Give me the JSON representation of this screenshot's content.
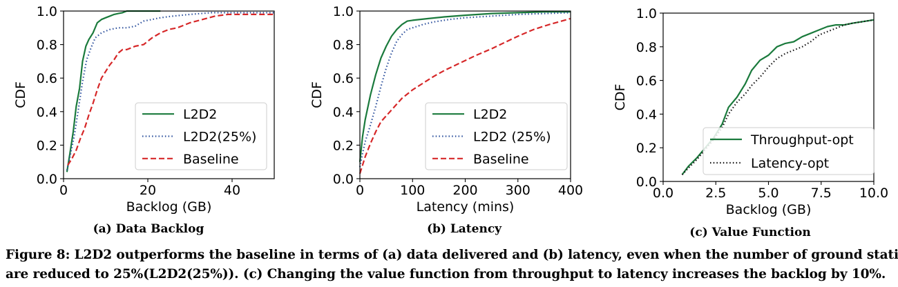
{
  "chart_data": [
    {
      "type": "line",
      "subcaption": "(a) Data Backlog",
      "xlabel": "Backlog (GB)",
      "ylabel": "CDF",
      "xlim": [
        0,
        50
      ],
      "ylim": [
        0,
        1.0
      ],
      "xticks": [
        "0",
        "20",
        "40"
      ],
      "xtick_values": [
        0,
        20,
        40
      ],
      "yticks": [
        "0.0",
        "0.2",
        "0.4",
        "0.6",
        "0.8",
        "1.0"
      ],
      "ytick_values": [
        0,
        0.2,
        0.4,
        0.6,
        0.8,
        1.0
      ],
      "legend": "lower-right",
      "series": [
        {
          "name": "L2D2",
          "color": "#1a7a3c",
          "dash": "solid",
          "x": [
            0.8,
            1.5,
            2.3,
            3,
            3.8,
            4.5,
            5.3,
            6,
            7,
            8,
            9,
            10,
            11,
            12,
            13,
            14,
            15,
            17,
            20,
            23
          ],
          "y": [
            0.04,
            0.15,
            0.28,
            0.43,
            0.54,
            0.7,
            0.79,
            0.83,
            0.87,
            0.93,
            0.95,
            0.96,
            0.97,
            0.98,
            0.985,
            0.99,
            1.0,
            1.0,
            1.0,
            1.0
          ]
        },
        {
          "name": "L2D2(25%)",
          "color": "#2b4f9c",
          "dash": "dot",
          "x": [
            0.8,
            1.5,
            2.5,
            3.5,
            4.5,
            5.5,
            6.5,
            7.5,
            9,
            11,
            13,
            15,
            17,
            19,
            21,
            23,
            26,
            30,
            35,
            40,
            50
          ],
          "y": [
            0.05,
            0.13,
            0.25,
            0.41,
            0.58,
            0.71,
            0.78,
            0.84,
            0.87,
            0.89,
            0.9,
            0.9,
            0.91,
            0.94,
            0.95,
            0.96,
            0.97,
            0.98,
            0.99,
            0.99,
            0.99
          ]
        },
        {
          "name": "Baseline",
          "color": "#d62728",
          "dash": "dash",
          "x": [
            1,
            2,
            3,
            4,
            5,
            6,
            7,
            8,
            9,
            10,
            11,
            12,
            13,
            14,
            15,
            17,
            19,
            21,
            23,
            25,
            27,
            30,
            33,
            36,
            39,
            42,
            50
          ],
          "y": [
            0.08,
            0.12,
            0.17,
            0.24,
            0.3,
            0.38,
            0.45,
            0.53,
            0.6,
            0.64,
            0.68,
            0.71,
            0.75,
            0.77,
            0.77,
            0.79,
            0.8,
            0.84,
            0.87,
            0.89,
            0.9,
            0.93,
            0.95,
            0.97,
            0.98,
            0.98,
            0.98
          ]
        }
      ]
    },
    {
      "type": "line",
      "subcaption": "(b) Latency",
      "xlabel": "Latency (mins)",
      "ylabel": "CDF",
      "xlim": [
        0,
        400
      ],
      "ylim": [
        0,
        1.0
      ],
      "xticks": [
        "0",
        "100",
        "200",
        "300",
        "400"
      ],
      "xtick_values": [
        0,
        100,
        200,
        300,
        400
      ],
      "yticks": [
        "0.0",
        "0.2",
        "0.4",
        "0.6",
        "0.8",
        "1.0"
      ],
      "ytick_values": [
        0,
        0.2,
        0.4,
        0.6,
        0.8,
        1.0
      ],
      "legend": "lower-right",
      "series": [
        {
          "name": "L2D2",
          "color": "#1a7a3c",
          "dash": "solid",
          "x": [
            0,
            5,
            10,
            20,
            30,
            40,
            50,
            60,
            70,
            80,
            90,
            100,
            130,
            160,
            200,
            250,
            300,
            350,
            400
          ],
          "y": [
            0.1,
            0.25,
            0.35,
            0.5,
            0.62,
            0.72,
            0.79,
            0.85,
            0.89,
            0.92,
            0.94,
            0.945,
            0.955,
            0.965,
            0.975,
            0.985,
            0.99,
            0.995,
            0.995
          ]
        },
        {
          "name": "L2D2 (25%)",
          "color": "#2b4f9c",
          "dash": "dot",
          "x": [
            0,
            5,
            10,
            20,
            30,
            40,
            50,
            60,
            70,
            80,
            90,
            100,
            120,
            140,
            170,
            200,
            250,
            300,
            350,
            400
          ],
          "y": [
            0.07,
            0.15,
            0.22,
            0.32,
            0.43,
            0.55,
            0.66,
            0.75,
            0.82,
            0.86,
            0.89,
            0.9,
            0.92,
            0.935,
            0.95,
            0.96,
            0.97,
            0.98,
            0.985,
            0.99
          ]
        },
        {
          "name": "Baseline",
          "color": "#d62728",
          "dash": "dash",
          "x": [
            0,
            5,
            10,
            20,
            30,
            40,
            60,
            80,
            100,
            120,
            140,
            160,
            180,
            200,
            220,
            250,
            280,
            300,
            330,
            360,
            400
          ],
          "y": [
            0.03,
            0.08,
            0.13,
            0.21,
            0.28,
            0.34,
            0.41,
            0.48,
            0.53,
            0.57,
            0.61,
            0.645,
            0.675,
            0.705,
            0.735,
            0.775,
            0.82,
            0.85,
            0.89,
            0.92,
            0.955
          ]
        }
      ]
    },
    {
      "type": "line",
      "subcaption": "(c) Value Function",
      "xlabel": "Backlog (GB)",
      "ylabel": "CDF",
      "xlim": [
        0,
        10
      ],
      "ylim": [
        0,
        1.0
      ],
      "xticks": [
        "0.0",
        "2.5",
        "5.0",
        "7.5",
        "10.0"
      ],
      "xtick_values": [
        0,
        2.5,
        5.0,
        7.5,
        10.0
      ],
      "yticks": [
        "0.0",
        "0.2",
        "0.4",
        "0.6",
        "0.8",
        "1.0"
      ],
      "ytick_values": [
        0,
        0.2,
        0.4,
        0.6,
        0.8,
        1.0
      ],
      "legend": "lower-right",
      "series": [
        {
          "name": "Throughput-opt",
          "color": "#1a7a3c",
          "dash": "solid",
          "x": [
            0.9,
            1.2,
            1.6,
            2.0,
            2.4,
            2.8,
            3.1,
            3.5,
            3.9,
            4.2,
            4.6,
            5.0,
            5.4,
            5.8,
            6.2,
            6.6,
            7.0,
            7.4,
            7.8,
            8.2,
            8.6,
            9.0,
            9.5,
            10.0
          ],
          "y": [
            0.04,
            0.09,
            0.14,
            0.2,
            0.26,
            0.34,
            0.44,
            0.5,
            0.58,
            0.66,
            0.72,
            0.75,
            0.8,
            0.82,
            0.83,
            0.86,
            0.88,
            0.9,
            0.92,
            0.93,
            0.93,
            0.94,
            0.95,
            0.96
          ]
        },
        {
          "name": "Latency-opt",
          "color": "#111111",
          "dash": "dot",
          "x": [
            0.9,
            1.2,
            1.6,
            2.0,
            2.4,
            2.8,
            3.1,
            3.5,
            3.9,
            4.2,
            4.6,
            5.0,
            5.4,
            5.8,
            6.2,
            6.6,
            7.0,
            7.4,
            7.8,
            8.2,
            8.6,
            9.0,
            9.5,
            10.0
          ],
          "y": [
            0.04,
            0.08,
            0.13,
            0.19,
            0.25,
            0.32,
            0.4,
            0.47,
            0.52,
            0.57,
            0.62,
            0.68,
            0.73,
            0.76,
            0.78,
            0.8,
            0.83,
            0.87,
            0.89,
            0.91,
            0.93,
            0.94,
            0.95,
            0.96
          ]
        }
      ]
    }
  ],
  "caption": {
    "line1": "Figure 8: L2D2 outperforms the baseline in terms of (a) data delivered and (b) latency, even when the number of ground stations",
    "line2": "are reduced to 25%(L2D2(25%)). (c) Changing the value function from throughput to latency increases the backlog by 10%."
  }
}
